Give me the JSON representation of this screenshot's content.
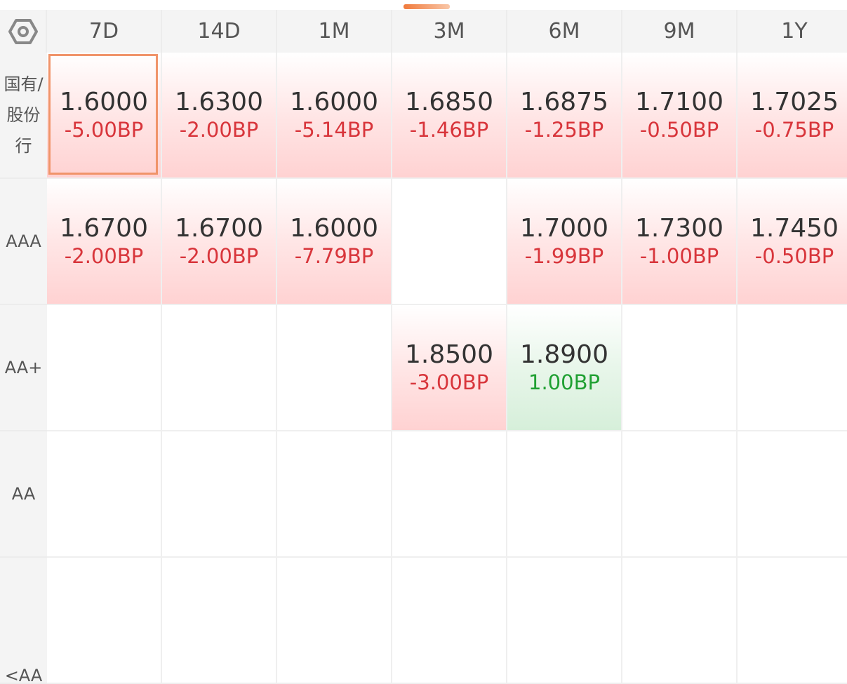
{
  "colors": {
    "up": "#d8353b",
    "down": "#1fa032",
    "selected_border": "#f0946a",
    "indicator": "#f07a3c"
  },
  "settings_icon": "hexagon-settings-icon",
  "columns": [
    "7D",
    "14D",
    "1M",
    "3M",
    "6M",
    "9M",
    "1Y"
  ],
  "rows": [
    {
      "label": "国有/股份行",
      "cells": [
        {
          "value": "1.6000",
          "change": "-5.00BP",
          "dir": "up",
          "selected": true
        },
        {
          "value": "1.6300",
          "change": "-2.00BP",
          "dir": "up"
        },
        {
          "value": "1.6000",
          "change": "-5.14BP",
          "dir": "up"
        },
        {
          "value": "1.6850",
          "change": "-1.46BP",
          "dir": "up"
        },
        {
          "value": "1.6875",
          "change": "-1.25BP",
          "dir": "up"
        },
        {
          "value": "1.7100",
          "change": "-0.50BP",
          "dir": "up"
        },
        {
          "value": "1.7025",
          "change": "-0.75BP",
          "dir": "up"
        }
      ]
    },
    {
      "label": "AAA",
      "cells": [
        {
          "value": "1.6700",
          "change": "-2.00BP",
          "dir": "up"
        },
        {
          "value": "1.6700",
          "change": "-2.00BP",
          "dir": "up"
        },
        {
          "value": "1.6000",
          "change": "-7.79BP",
          "dir": "up"
        },
        null,
        {
          "value": "1.7000",
          "change": "-1.99BP",
          "dir": "up"
        },
        {
          "value": "1.7300",
          "change": "-1.00BP",
          "dir": "up"
        },
        {
          "value": "1.7450",
          "change": "-0.50BP",
          "dir": "up"
        }
      ]
    },
    {
      "label": "AA+",
      "cells": [
        null,
        null,
        null,
        {
          "value": "1.8500",
          "change": "-3.00BP",
          "dir": "up"
        },
        {
          "value": "1.8900",
          "change": "1.00BP",
          "dir": "down"
        },
        null,
        null
      ]
    },
    {
      "label": "AA",
      "cells": [
        null,
        null,
        null,
        null,
        null,
        null,
        null
      ]
    },
    {
      "label": "<AA",
      "cells": [
        null,
        null,
        null,
        null,
        null,
        null,
        null
      ]
    }
  ]
}
